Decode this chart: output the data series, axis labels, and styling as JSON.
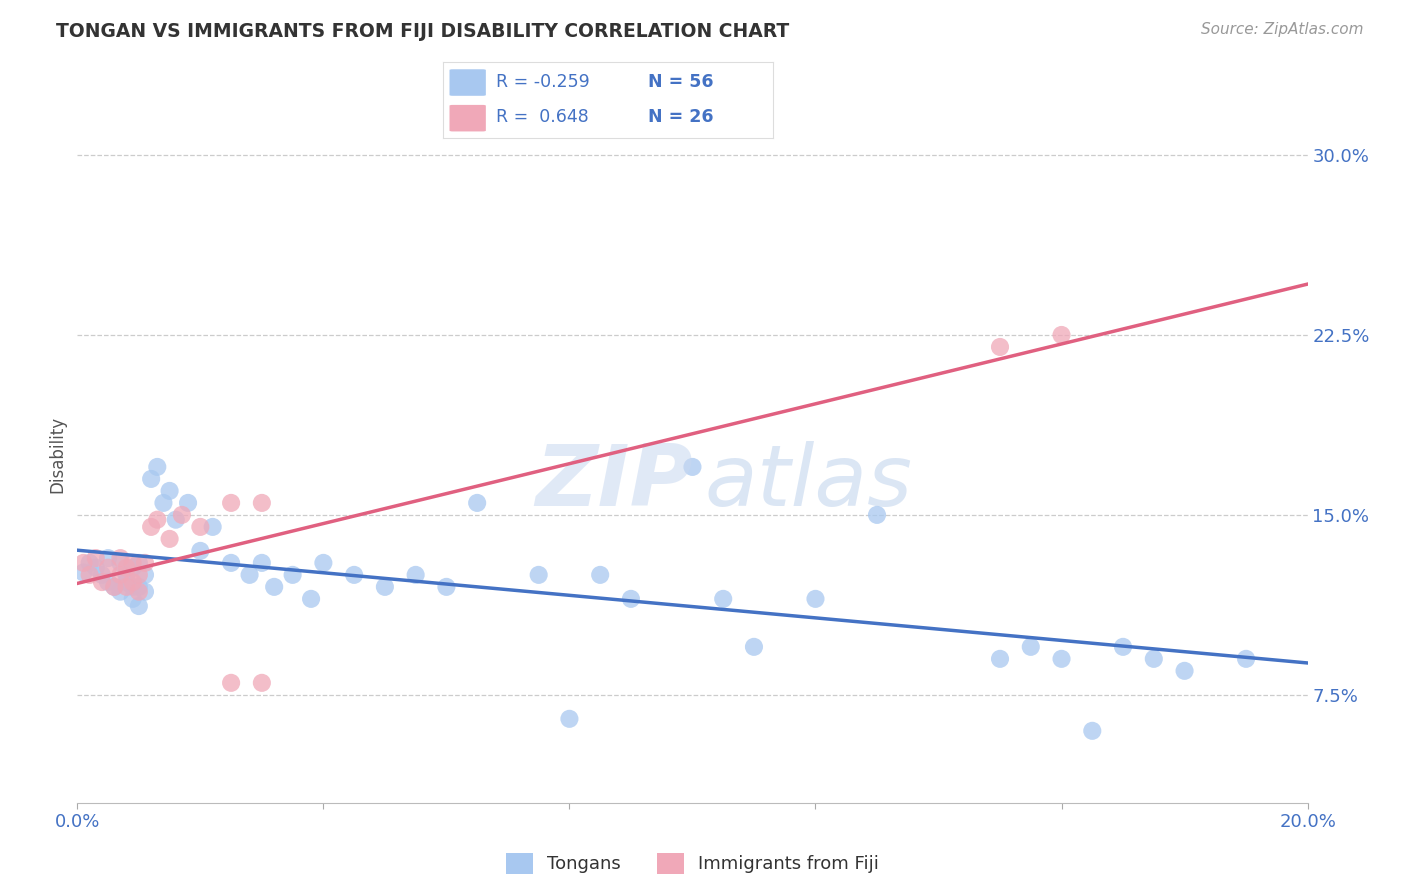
{
  "title": "TONGAN VS IMMIGRANTS FROM FIJI DISABILITY CORRELATION CHART",
  "source": "Source: ZipAtlas.com",
  "ylabel": "Disability",
  "yticks": [
    "7.5%",
    "15.0%",
    "22.5%",
    "30.0%"
  ],
  "ytick_vals": [
    0.075,
    0.15,
    0.225,
    0.3
  ],
  "xmin": 0.0,
  "xmax": 0.2,
  "ymin": 0.03,
  "ymax": 0.32,
  "blue_color": "#A8C8F0",
  "pink_color": "#F0A8B8",
  "blue_line_color": "#4472C4",
  "pink_line_color": "#E06080",
  "grid_color": "#CCCCCC",
  "label_color": "#4472C4",
  "title_color": "#333333",
  "blue_scatter_x": [
    0.001,
    0.002,
    0.003,
    0.004,
    0.005,
    0.005,
    0.006,
    0.007,
    0.007,
    0.008,
    0.008,
    0.009,
    0.009,
    0.009,
    0.01,
    0.01,
    0.01,
    0.011,
    0.011,
    0.012,
    0.013,
    0.014,
    0.015,
    0.016,
    0.018,
    0.02,
    0.022,
    0.025,
    0.028,
    0.03,
    0.032,
    0.035,
    0.038,
    0.04,
    0.045,
    0.05,
    0.055,
    0.06,
    0.065,
    0.075,
    0.08,
    0.085,
    0.09,
    0.1,
    0.105,
    0.11,
    0.12,
    0.13,
    0.15,
    0.155,
    0.16,
    0.165,
    0.17,
    0.175,
    0.18,
    0.19
  ],
  "blue_scatter_y": [
    0.126,
    0.13,
    0.128,
    0.125,
    0.132,
    0.122,
    0.12,
    0.13,
    0.118,
    0.125,
    0.122,
    0.128,
    0.12,
    0.115,
    0.13,
    0.12,
    0.112,
    0.125,
    0.118,
    0.165,
    0.17,
    0.155,
    0.16,
    0.148,
    0.155,
    0.135,
    0.145,
    0.13,
    0.125,
    0.13,
    0.12,
    0.125,
    0.115,
    0.13,
    0.125,
    0.12,
    0.125,
    0.12,
    0.155,
    0.125,
    0.065,
    0.125,
    0.115,
    0.17,
    0.115,
    0.095,
    0.115,
    0.15,
    0.09,
    0.095,
    0.09,
    0.06,
    0.095,
    0.09,
    0.085,
    0.09
  ],
  "pink_scatter_x": [
    0.001,
    0.002,
    0.003,
    0.004,
    0.005,
    0.006,
    0.007,
    0.007,
    0.008,
    0.008,
    0.009,
    0.009,
    0.01,
    0.01,
    0.011,
    0.012,
    0.013,
    0.015,
    0.017,
    0.02,
    0.025,
    0.03,
    0.025,
    0.03,
    0.15,
    0.16
  ],
  "pink_scatter_y": [
    0.13,
    0.125,
    0.132,
    0.122,
    0.128,
    0.12,
    0.132,
    0.125,
    0.128,
    0.12,
    0.13,
    0.122,
    0.125,
    0.118,
    0.13,
    0.145,
    0.148,
    0.14,
    0.15,
    0.145,
    0.08,
    0.08,
    0.155,
    0.155,
    0.22,
    0.225
  ],
  "watermark_zip": "ZIP",
  "watermark_atlas": "atlas",
  "background_color": "#FFFFFF"
}
